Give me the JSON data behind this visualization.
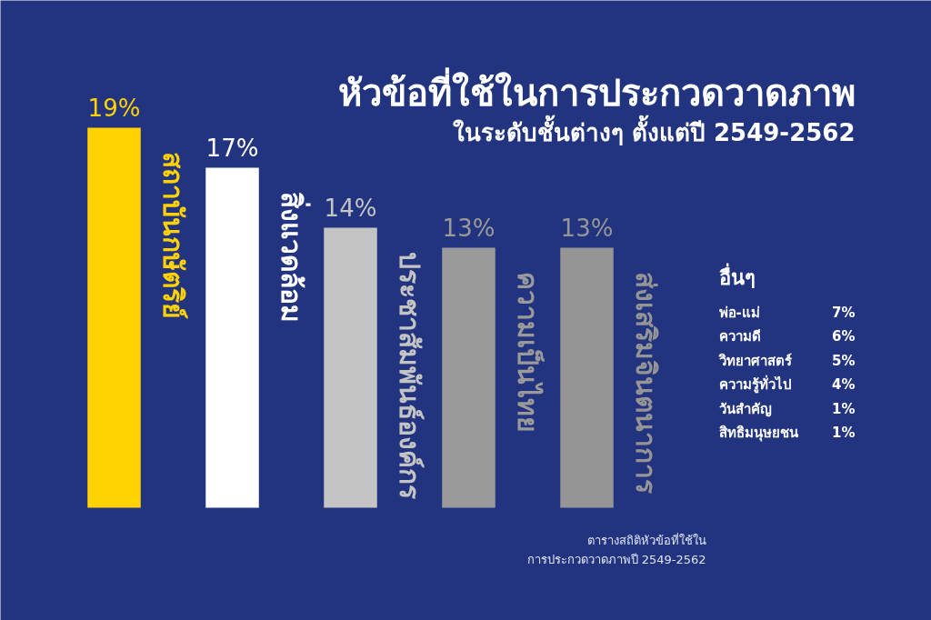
{
  "chart_data": [
    {
      "type": "bar",
      "title": "หัวข้อที่ใช้ในการประกวดวาดภาพ",
      "subtitle": "ในระดับชั้นต่างๆ ตั้งแต่ปี 2549-2562",
      "categories": [
        "สถาบันกษัตริย์",
        "สิ่งแวดล้อม",
        "ประชาสัมพันธ์องค์กร",
        "ความเป็นไทย",
        "ส่งเสริมจินตนาการ"
      ],
      "values": [
        19,
        17,
        14,
        13,
        13
      ],
      "value_labels": [
        "19%",
        "17%",
        "14%",
        "13%",
        "13%"
      ],
      "colors": [
        "#ffd200",
        "#ffffff",
        "#c4c4c4",
        "#9a9a9a",
        "#959595"
      ],
      "annotations": [
        "ตารางสถิติหัวข้อที่ใช้ใน",
        "การประกวดวาดภาพปี 2549-2562"
      ]
    },
    {
      "type": "other",
      "title": "อื่นๆ",
      "categories": [
        "พ่อ-แม่",
        "ความดี",
        "วิทยาศาสตร์",
        "ความรู้ทั่วไป",
        "วันสำคัญ",
        "สิทธิมนุษยชน"
      ],
      "values": [
        7,
        6,
        5,
        4,
        1,
        1
      ],
      "value_labels": [
        "7%",
        "6%",
        "5%",
        "4%",
        "1%",
        "1%"
      ]
    }
  ]
}
